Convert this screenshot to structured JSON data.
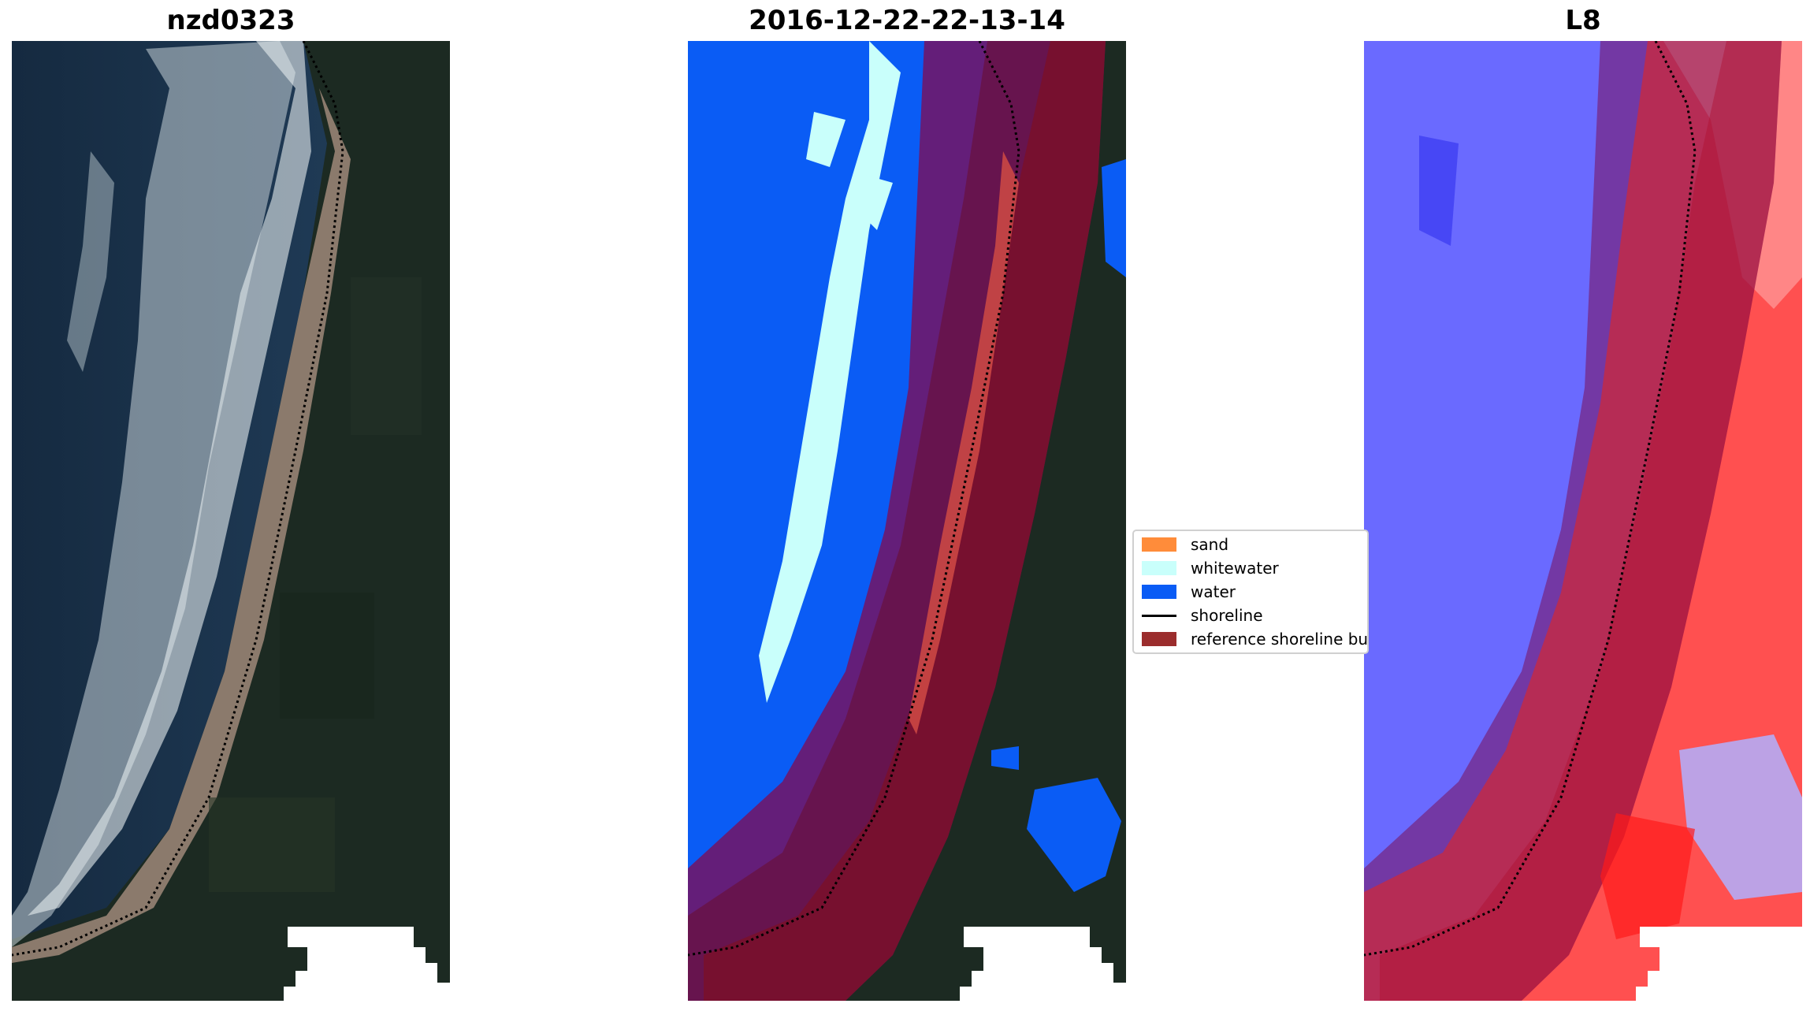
{
  "panels": [
    {
      "title": "nzd0323"
    },
    {
      "title": "2016-12-22-22-13-14"
    },
    {
      "title": "L8"
    }
  ],
  "legend": {
    "items": [
      {
        "label": "sand",
        "color": "#ff8c3a",
        "kind": "patch"
      },
      {
        "label": "whitewater",
        "color": "#c9fffb",
        "kind": "patch"
      },
      {
        "label": "water",
        "color": "#0a5cf5",
        "kind": "patch"
      },
      {
        "label": "shoreline",
        "color": "#000000",
        "kind": "line"
      },
      {
        "label": "reference shoreline buffer",
        "color": "#9b2d2d",
        "kind": "patch"
      }
    ]
  },
  "colors": {
    "land": "#1d2a22",
    "sea": "#1a3048",
    "buffer": "#7a0f2a",
    "water_index_low": "#2b2bff",
    "water_index_high": "#ff2b2b"
  }
}
